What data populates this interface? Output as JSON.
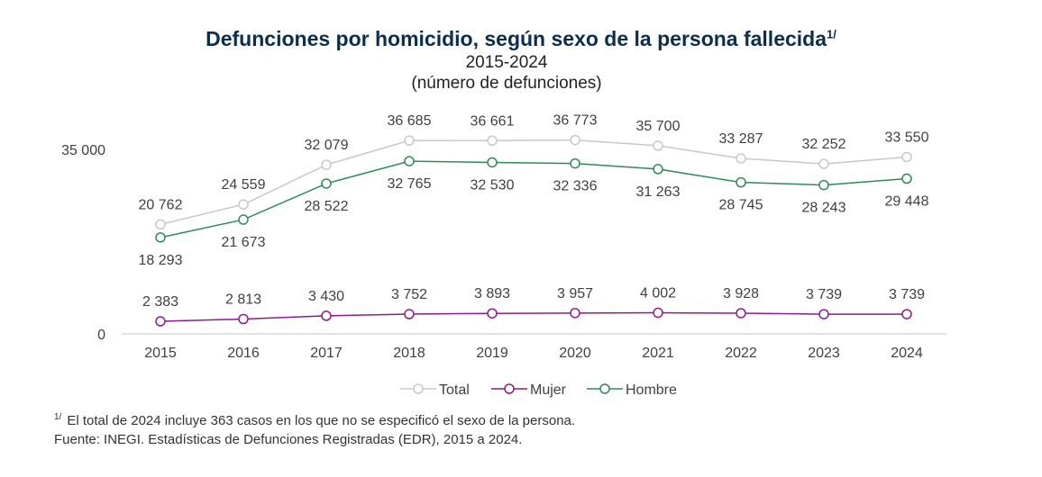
{
  "chart_data": {
    "type": "line",
    "title": "Defunciones por homicidio, según sexo de la persona fallecida",
    "title_note": "1/",
    "subtitle": "2015-2024",
    "unit_label": "(número de defunciones)",
    "categories": [
      "2015",
      "2016",
      "2017",
      "2018",
      "2019",
      "2020",
      "2021",
      "2022",
      "2023",
      "2024"
    ],
    "y_ticks": [
      {
        "value": 0,
        "label": "0"
      },
      {
        "value": 35000,
        "label": "35 000"
      }
    ],
    "ylim": [
      0,
      35000
    ],
    "grid": false,
    "legend_position": "bottom",
    "series": [
      {
        "name": "Total",
        "color": "#c8c8c8",
        "label_pos": "above",
        "values": [
          20762,
          24559,
          32079,
          36685,
          36661,
          36773,
          35700,
          33287,
          32252,
          33550
        ],
        "labels": [
          "20 762",
          "24 559",
          "32 079",
          "36 685",
          "36 661",
          "36 773",
          "35 700",
          "33 287",
          "32 252",
          "33 550"
        ]
      },
      {
        "name": "Mujer",
        "color": "#8e1a8e",
        "label_pos": "above",
        "values": [
          2383,
          2813,
          3430,
          3752,
          3893,
          3957,
          4002,
          3928,
          3739,
          3739
        ],
        "labels": [
          "2 383",
          "2 813",
          "3 430",
          "3 752",
          "3 893",
          "3 957",
          "4 002",
          "3 928",
          "3 739",
          "3 739"
        ]
      },
      {
        "name": "Hombre",
        "color": "#2e8b57",
        "label_pos": "below",
        "values": [
          18293,
          21673,
          28522,
          32765,
          32530,
          32336,
          31263,
          28745,
          28243,
          29448
        ],
        "labels": [
          "18 293",
          "21 673",
          "28 522",
          "32 765",
          "32 530",
          "32 336",
          "31 263",
          "28 745",
          "28 243",
          "29 448"
        ]
      }
    ]
  },
  "footnotes": {
    "note_marker": "1/",
    "note_text": "El total de 2024 incluye 363 casos en los que no se especificó el sexo de la persona.",
    "source": "Fuente: INEGI. Estadísticas de Defunciones Registradas (EDR), 2015 a 2024."
  }
}
